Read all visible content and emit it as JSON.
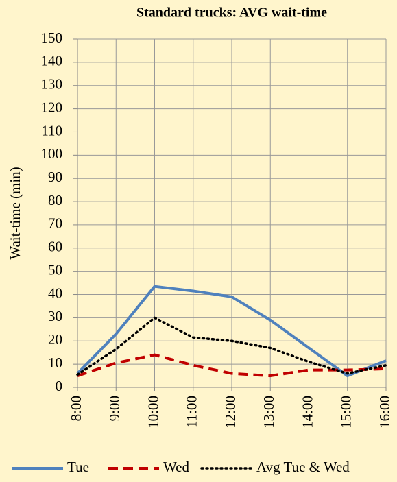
{
  "chart_data": {
    "type": "line",
    "title": "Standard trucks: AVG wait-time",
    "y_label": "Wait-time (min)",
    "categories": [
      "8:00",
      "9:00",
      "10:00",
      "11:00",
      "12:00",
      "13:00",
      "14:00",
      "15:00",
      "16:00"
    ],
    "series": [
      {
        "name": "Tue",
        "color": "#4f81bd",
        "dash": "solid",
        "values": [
          6,
          23,
          43.5,
          41.5,
          39,
          29,
          17,
          5,
          11.5
        ]
      },
      {
        "name": "Wed",
        "color": "#c00000",
        "dash": "dashed",
        "values": [
          5,
          10.5,
          14,
          9.5,
          6,
          5,
          7.5,
          7.5,
          8
        ]
      },
      {
        "name": "Avg Tue & Wed",
        "color": "#000000",
        "dash": "dotted",
        "values": [
          5.5,
          16.5,
          30,
          21.5,
          20,
          17,
          11,
          6,
          9.5
        ]
      }
    ],
    "ylim": [
      0,
      150
    ],
    "yticks": [
      0,
      10,
      20,
      30,
      40,
      50,
      60,
      70,
      80,
      90,
      100,
      110,
      120,
      130,
      140,
      150
    ],
    "grid": true,
    "legend": "bottom"
  }
}
